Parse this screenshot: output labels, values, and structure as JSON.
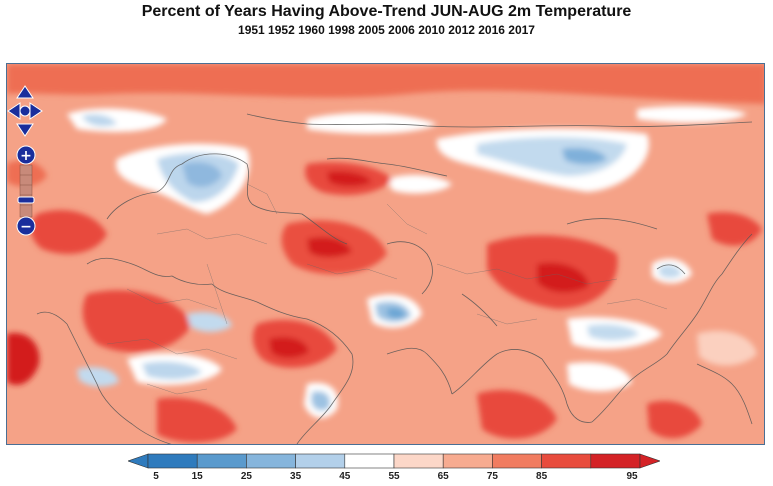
{
  "title": "Percent of Years Having Above-Trend JUN-AUG 2m Temperature",
  "years": "1951 1952 1960 1998 2005 2006 2010 2012 2016 2017",
  "map": {
    "region": "Europe, Africa and Asia",
    "colormap": [
      "#3a82c0",
      "#6ba5d4",
      "#9dc2e2",
      "#c6dcef",
      "#ffffff",
      "#fbd0bf",
      "#f7a487",
      "#f07458",
      "#e8453a",
      "#d4151b"
    ]
  },
  "controls": {
    "pan_up": "pan-up",
    "pan_down": "pan-down",
    "pan_left": "pan-left",
    "pan_right": "pan-right",
    "zoom_in": "+",
    "zoom_out": "−"
  },
  "legend": {
    "ticks": [
      "5",
      "15",
      "25",
      "35",
      "45",
      "55",
      "65",
      "75",
      "85",
      "95"
    ],
    "colors": [
      "#2f7bbd",
      "#5a9acd",
      "#86b5dc",
      "#b3d0ea",
      "#ffffff",
      "#fcd7c8",
      "#f7ab90",
      "#f17c60",
      "#e84c3d",
      "#d42226"
    ]
  }
}
